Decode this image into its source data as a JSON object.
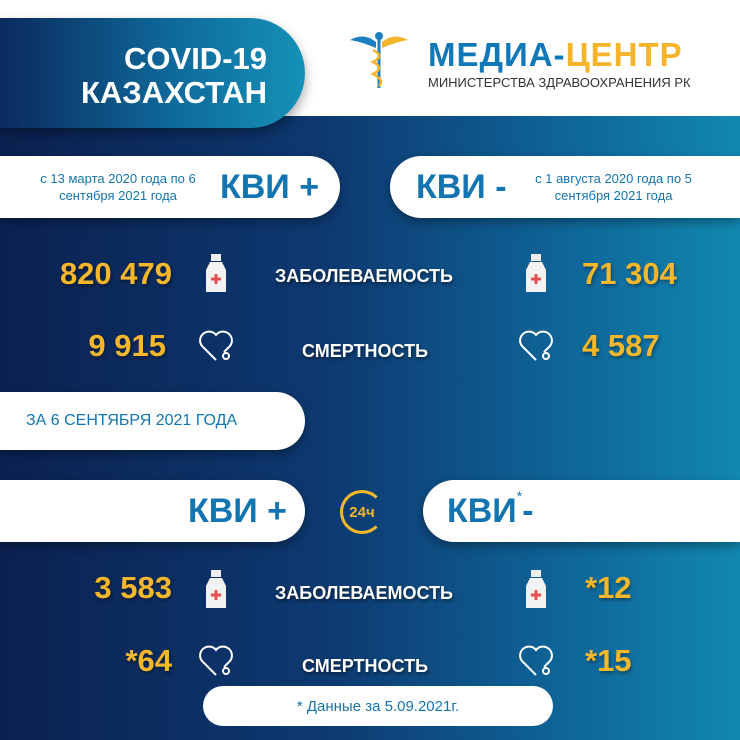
{
  "header": {
    "title_line1": "COVID-19",
    "title_line2": "КАЗАХСТАН",
    "logo_part1": "МЕДИА-",
    "logo_part2": "ЦЕНТР",
    "logo_subtitle": "МИНИСТЕРСТВА ЗДРАВООХРАНЕНИЯ РК"
  },
  "cumulative": {
    "positive": {
      "label": "КВИ +",
      "period": "с 13 марта 2020 года по 6 сентября 2021 года",
      "cases": "820 479",
      "deaths": "9 915"
    },
    "negative": {
      "label": "КВИ -",
      "period": "с 1 августа 2020 года по 5 сентября 2021 года",
      "cases": "71 304",
      "deaths": "4 587"
    }
  },
  "labels": {
    "cases": "ЗАБОЛЕВАЕМОСТЬ",
    "deaths": "СМЕРТНОСТЬ"
  },
  "daily": {
    "date_label": "ЗА 6 СЕНТЯБРЯ 2021 ГОДА",
    "badge": "24ч",
    "positive": {
      "label": "КВИ +",
      "cases": "3 583",
      "deaths": "*64"
    },
    "negative": {
      "label": "КВИ",
      "asterisk": "*",
      "suffix": "-",
      "cases": "*12",
      "deaths": "*15"
    }
  },
  "footnote": "* Данные за 5.09.2021г.",
  "colors": {
    "accent": "#f6b72a",
    "blue": "#1274b0"
  }
}
